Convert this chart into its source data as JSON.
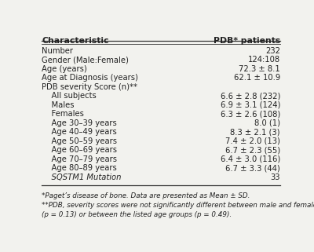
{
  "header": [
    "Characteristic",
    "PDB* patients"
  ],
  "rows": [
    [
      "Number",
      "232"
    ],
    [
      "Gender (Male:Female)",
      "124:108"
    ],
    [
      "Age (years)",
      "72.3 ± 8.1"
    ],
    [
      "Age at Diagnosis (years)",
      "62.1 ± 10.9"
    ],
    [
      "PDB severity Score (n)**",
      ""
    ],
    [
      "    All subjects",
      "6.6 ± 2.8 (232)"
    ],
    [
      "    Males",
      "6.9 ± 3.1 (124)"
    ],
    [
      "    Females",
      "6.3 ± 2.6 (108)"
    ],
    [
      "    Age 30–39 years",
      "8.0 (1)"
    ],
    [
      "    Age 40–49 years",
      "8.3 ± 2.1 (3)"
    ],
    [
      "    Age 50–59 years",
      "7.4 ± 2.0 (13)"
    ],
    [
      "    Age 60–69 years",
      "6.7 ± 2.3 (55)"
    ],
    [
      "    Age 70–79 years",
      "6.4 ± 3.0 (116)"
    ],
    [
      "    Age 80–89 years",
      "6.7 ± 3.3 (44)"
    ],
    [
      "    SQSTM1 Mutation",
      "33"
    ]
  ],
  "footnote1": "*Paget’s disease of bone. Data are presented as Mean ± SD.",
  "footnote2": "**PDB, severity scores were not significantly different between male and female subjects",
  "footnote3": "(p = 0.13) or between the listed age groups (p = 0.49).",
  "bg_color": "#f2f2ee",
  "header_line_color": "#333333",
  "text_color": "#222222",
  "font_size": 7.2,
  "header_font_size": 7.8
}
